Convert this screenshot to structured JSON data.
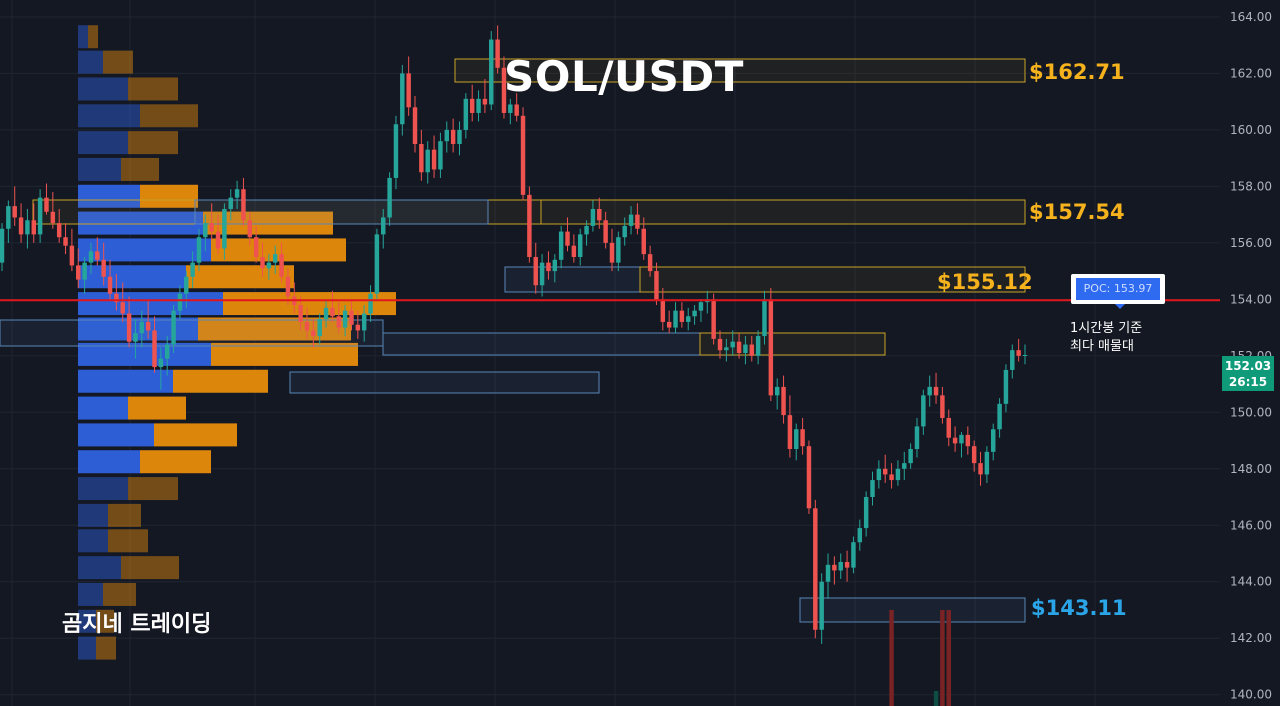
{
  "chart_data": {
    "type": "candlestick",
    "title": "SOL/USDT",
    "watermark": "곰지네 트레이딩",
    "ylim": [
      139.6,
      164.6
    ],
    "y_ticks": [
      "164.00",
      "162.00",
      "160.00",
      "158.00",
      "156.00",
      "154.00",
      "152.00",
      "150.00",
      "148.00",
      "146.00",
      "144.00",
      "142.00",
      "140.00"
    ],
    "last_price": {
      "value": "152.03",
      "countdown": "26:15"
    },
    "poc": {
      "label": "POC: 153.97",
      "value": 153.97,
      "note_line1": "1시간봉 기준",
      "note_line2": "최다 매물대"
    },
    "levels": [
      {
        "label": "$162.71",
        "value": 162.71,
        "color": "#f5b21c"
      },
      {
        "label": "$157.54",
        "value": 157.54,
        "color": "#f5b21c"
      },
      {
        "label": "$155.12",
        "value": 155.12,
        "color": "#f5b21c"
      },
      {
        "label": "$143.11",
        "value": 143.11,
        "color": "#2aa6e8"
      }
    ],
    "colors": {
      "up": "#26a69a",
      "down": "#ef5350",
      "poc_line": "#e0161c",
      "vp_up": "#2e62e0",
      "vp_down": "#e88c0c",
      "grid": "#1f2533",
      "background": "#141823"
    },
    "volume_profile": [
      {
        "price": 163.3,
        "up": 10,
        "down": 10
      },
      {
        "price": 162.4,
        "up": 25,
        "down": 30
      },
      {
        "price": 161.45,
        "up": 50,
        "down": 50
      },
      {
        "price": 160.5,
        "up": 62,
        "down": 58
      },
      {
        "price": 159.55,
        "up": 50,
        "down": 50
      },
      {
        "price": 158.6,
        "up": 43,
        "down": 38
      },
      {
        "price": 157.65,
        "up": 62,
        "down": 58
      },
      {
        "price": 156.7,
        "up": 125,
        "down": 130
      },
      {
        "price": 155.75,
        "up": 133,
        "down": 135
      },
      {
        "price": 154.8,
        "up": 108,
        "down": 108
      },
      {
        "price": 153.85,
        "up": 145,
        "down": 173
      },
      {
        "price": 152.95,
        "up": 120,
        "down": 153
      },
      {
        "price": 152.05,
        "up": 133,
        "down": 147
      },
      {
        "price": 151.1,
        "up": 95,
        "down": 95
      },
      {
        "price": 150.15,
        "up": 50,
        "down": 58
      },
      {
        "price": 149.2,
        "up": 76,
        "down": 83
      },
      {
        "price": 148.25,
        "up": 62,
        "down": 71
      },
      {
        "price": 147.3,
        "up": 50,
        "down": 50
      },
      {
        "price": 146.35,
        "up": 30,
        "down": 33
      },
      {
        "price": 145.45,
        "up": 30,
        "down": 40
      },
      {
        "price": 144.5,
        "up": 43,
        "down": 58
      },
      {
        "price": 143.55,
        "up": 25,
        "down": 33
      },
      {
        "price": 142.6,
        "up": 18,
        "down": 18
      },
      {
        "price": 141.65,
        "up": 18,
        "down": 20
      }
    ],
    "candles": [
      [
        155.3,
        156.7,
        155.0,
        156.5
      ],
      [
        156.5,
        157.5,
        156.0,
        157.3
      ],
      [
        157.3,
        158.0,
        156.6,
        156.9
      ],
      [
        156.9,
        157.4,
        156.0,
        156.3
      ],
      [
        156.3,
        157.2,
        155.8,
        156.8
      ],
      [
        156.8,
        157.4,
        156.0,
        156.3
      ],
      [
        156.3,
        157.9,
        156.0,
        157.6
      ],
      [
        157.6,
        158.1,
        157.0,
        157.1
      ],
      [
        157.1,
        157.8,
        156.5,
        156.7
      ],
      [
        156.7,
        157.2,
        156.0,
        156.2
      ],
      [
        156.2,
        156.7,
        155.6,
        155.9
      ],
      [
        155.9,
        156.5,
        155.0,
        155.2
      ],
      [
        155.2,
        155.8,
        154.4,
        154.7
      ],
      [
        154.7,
        155.5,
        154.2,
        155.3
      ],
      [
        155.3,
        156.0,
        154.9,
        155.7
      ],
      [
        155.7,
        156.2,
        155.2,
        155.4
      ],
      [
        155.4,
        156.0,
        154.5,
        154.8
      ],
      [
        154.8,
        155.4,
        154.0,
        154.2
      ],
      [
        154.2,
        154.9,
        153.6,
        153.9
      ],
      [
        153.9,
        154.6,
        153.2,
        153.5
      ],
      [
        153.5,
        154.1,
        152.3,
        152.5
      ],
      [
        152.5,
        153.3,
        151.9,
        152.8
      ],
      [
        152.8,
        153.6,
        152.3,
        153.2
      ],
      [
        153.2,
        154.0,
        152.6,
        152.9
      ],
      [
        152.9,
        153.4,
        151.4,
        151.6
      ],
      [
        151.6,
        152.3,
        150.8,
        151.9
      ],
      [
        151.9,
        152.7,
        151.3,
        152.4
      ],
      [
        152.4,
        153.8,
        152.1,
        153.6
      ],
      [
        153.6,
        154.5,
        153.3,
        154.2
      ],
      [
        154.2,
        155.0,
        153.7,
        154.8
      ],
      [
        154.8,
        155.7,
        154.4,
        155.3
      ],
      [
        155.3,
        156.5,
        155.0,
        156.2
      ],
      [
        156.2,
        157.0,
        155.7,
        156.7
      ],
      [
        156.7,
        157.4,
        156.1,
        156.4
      ],
      [
        156.4,
        157.0,
        155.6,
        155.8
      ],
      [
        155.8,
        157.4,
        155.4,
        157.2
      ],
      [
        157.2,
        157.9,
        156.8,
        157.6
      ],
      [
        157.6,
        158.2,
        157.2,
        157.9
      ],
      [
        157.9,
        158.3,
        156.6,
        156.8
      ],
      [
        156.8,
        157.1,
        155.9,
        156.2
      ],
      [
        156.2,
        156.6,
        155.3,
        155.5
      ],
      [
        155.5,
        156.0,
        154.8,
        155.1
      ],
      [
        155.1,
        155.6,
        154.7,
        155.3
      ],
      [
        155.3,
        155.9,
        154.9,
        155.6
      ],
      [
        155.6,
        156.0,
        154.6,
        154.8
      ],
      [
        154.8,
        155.1,
        153.8,
        154.1
      ],
      [
        154.1,
        154.6,
        153.5,
        153.8
      ],
      [
        153.8,
        154.1,
        152.9,
        153.2
      ],
      [
        153.2,
        153.7,
        152.6,
        152.9
      ],
      [
        152.9,
        153.3,
        152.3,
        152.7
      ],
      [
        152.7,
        153.5,
        152.4,
        153.3
      ],
      [
        153.3,
        154.0,
        153.0,
        153.7
      ],
      [
        153.7,
        154.3,
        153.2,
        153.4
      ],
      [
        153.4,
        153.9,
        152.8,
        153.0
      ],
      [
        153.0,
        153.8,
        152.7,
        153.6
      ],
      [
        153.6,
        154.0,
        152.9,
        153.1
      ],
      [
        153.1,
        153.6,
        152.6,
        152.9
      ],
      [
        152.9,
        153.8,
        152.5,
        153.5
      ],
      [
        153.5,
        154.5,
        153.2,
        154.2
      ],
      [
        154.2,
        156.5,
        154.0,
        156.3
      ],
      [
        156.3,
        157.2,
        155.8,
        156.9
      ],
      [
        156.9,
        158.5,
        156.6,
        158.3
      ],
      [
        158.3,
        160.5,
        157.9,
        160.2
      ],
      [
        160.2,
        162.3,
        159.8,
        162.0
      ],
      [
        162.0,
        162.6,
        160.5,
        160.8
      ],
      [
        160.8,
        161.2,
        159.2,
        159.5
      ],
      [
        159.5,
        160.0,
        158.2,
        158.5
      ],
      [
        158.5,
        159.6,
        158.1,
        159.3
      ],
      [
        159.3,
        159.8,
        158.3,
        158.6
      ],
      [
        158.6,
        159.9,
        158.3,
        159.6
      ],
      [
        159.6,
        160.3,
        159.2,
        160.0
      ],
      [
        160.0,
        160.4,
        159.2,
        159.5
      ],
      [
        159.5,
        160.3,
        159.1,
        160.0
      ],
      [
        160.0,
        161.3,
        159.7,
        161.1
      ],
      [
        161.1,
        161.6,
        160.3,
        160.6
      ],
      [
        160.6,
        161.4,
        160.3,
        161.1
      ],
      [
        161.1,
        161.8,
        160.6,
        160.9
      ],
      [
        160.9,
        163.5,
        160.7,
        163.2
      ],
      [
        163.2,
        163.7,
        162.0,
        162.2
      ],
      [
        162.2,
        162.6,
        160.4,
        160.6
      ],
      [
        160.6,
        161.1,
        160.2,
        160.9
      ],
      [
        160.9,
        161.3,
        160.3,
        160.5
      ],
      [
        160.5,
        160.8,
        157.5,
        157.7
      ],
      [
        157.7,
        158.0,
        155.3,
        155.5
      ],
      [
        155.5,
        156.0,
        154.2,
        154.5
      ],
      [
        154.5,
        155.6,
        154.1,
        155.3
      ],
      [
        155.3,
        155.7,
        154.7,
        155.0
      ],
      [
        155.0,
        155.6,
        154.6,
        155.4
      ],
      [
        155.4,
        156.6,
        155.1,
        156.4
      ],
      [
        156.4,
        156.9,
        155.7,
        155.9
      ],
      [
        155.9,
        156.3,
        155.3,
        155.5
      ],
      [
        155.5,
        156.5,
        155.2,
        156.3
      ],
      [
        156.3,
        156.8,
        155.9,
        156.6
      ],
      [
        156.6,
        157.5,
        156.4,
        157.2
      ],
      [
        157.2,
        157.6,
        156.5,
        156.8
      ],
      [
        156.8,
        157.1,
        155.8,
        156.0
      ],
      [
        156.0,
        156.5,
        155.0,
        155.3
      ],
      [
        155.3,
        156.4,
        155.0,
        156.2
      ],
      [
        156.2,
        156.9,
        155.9,
        156.6
      ],
      [
        156.6,
        157.3,
        156.3,
        157.0
      ],
      [
        157.0,
        157.4,
        156.3,
        156.5
      ],
      [
        156.5,
        156.9,
        155.4,
        155.6
      ],
      [
        155.6,
        155.9,
        154.8,
        155.0
      ],
      [
        155.0,
        155.3,
        153.8,
        154.0
      ],
      [
        154.0,
        154.4,
        152.9,
        153.2
      ],
      [
        153.2,
        153.6,
        152.8,
        153.0
      ],
      [
        153.0,
        153.9,
        152.8,
        153.6
      ],
      [
        153.6,
        153.9,
        153.0,
        153.2
      ],
      [
        153.2,
        153.7,
        152.9,
        153.4
      ],
      [
        153.4,
        153.8,
        153.1,
        153.6
      ],
      [
        153.6,
        154.0,
        153.2,
        153.9
      ],
      [
        153.9,
        154.3,
        153.5,
        154.0
      ],
      [
        154.0,
        154.2,
        152.4,
        152.6
      ],
      [
        152.6,
        152.9,
        151.9,
        152.2
      ],
      [
        152.2,
        152.6,
        151.8,
        152.3
      ],
      [
        152.3,
        152.9,
        152.0,
        152.5
      ],
      [
        152.5,
        152.8,
        151.9,
        152.1
      ],
      [
        152.1,
        152.7,
        151.7,
        152.4
      ],
      [
        152.4,
        152.7,
        151.8,
        152.0
      ],
      [
        152.0,
        152.9,
        151.7,
        152.7
      ],
      [
        152.7,
        154.3,
        152.4,
        154.0
      ],
      [
        154.0,
        154.4,
        150.4,
        150.6
      ],
      [
        150.6,
        151.2,
        150.1,
        150.9
      ],
      [
        150.9,
        151.3,
        149.6,
        149.9
      ],
      [
        149.9,
        150.6,
        148.4,
        148.7
      ],
      [
        148.7,
        149.6,
        148.3,
        149.4
      ],
      [
        149.4,
        149.8,
        148.5,
        148.8
      ],
      [
        148.8,
        149.0,
        146.4,
        146.6
      ],
      [
        146.6,
        146.9,
        142.0,
        142.3
      ],
      [
        142.3,
        144.3,
        141.8,
        144.0
      ],
      [
        144.0,
        145.0,
        143.4,
        144.6
      ],
      [
        144.6,
        144.9,
        143.9,
        144.4
      ],
      [
        144.4,
        145.0,
        144.1,
        144.7
      ],
      [
        144.7,
        145.1,
        144.0,
        144.5
      ],
      [
        144.5,
        145.6,
        144.3,
        145.4
      ],
      [
        145.4,
        146.2,
        145.1,
        145.9
      ],
      [
        145.9,
        147.2,
        145.6,
        147.0
      ],
      [
        147.0,
        147.9,
        146.7,
        147.6
      ],
      [
        147.6,
        148.3,
        147.3,
        148.0
      ],
      [
        148.0,
        148.5,
        147.5,
        147.8
      ],
      [
        147.8,
        148.2,
        147.3,
        147.6
      ],
      [
        147.6,
        148.3,
        147.4,
        148.0
      ],
      [
        148.0,
        148.6,
        147.6,
        148.2
      ],
      [
        148.2,
        148.9,
        148.0,
        148.7
      ],
      [
        148.7,
        149.8,
        148.4,
        149.5
      ],
      [
        149.5,
        150.8,
        149.2,
        150.6
      ],
      [
        150.6,
        151.3,
        150.2,
        150.9
      ],
      [
        150.9,
        151.4,
        150.3,
        150.6
      ],
      [
        150.6,
        150.9,
        149.6,
        149.8
      ],
      [
        149.8,
        150.1,
        148.8,
        149.1
      ],
      [
        149.1,
        149.5,
        148.6,
        148.9
      ],
      [
        148.9,
        149.3,
        148.4,
        149.2
      ],
      [
        149.2,
        149.5,
        148.5,
        148.8
      ],
      [
        148.8,
        149.0,
        147.9,
        148.2
      ],
      [
        148.2,
        148.6,
        147.4,
        147.8
      ],
      [
        147.8,
        148.8,
        147.5,
        148.6
      ],
      [
        148.6,
        149.6,
        148.3,
        149.4
      ],
      [
        149.4,
        150.5,
        149.1,
        150.3
      ],
      [
        150.3,
        151.7,
        150.0,
        151.5
      ],
      [
        151.5,
        152.4,
        151.2,
        152.2
      ],
      [
        152.2,
        152.6,
        151.8,
        152.0
      ],
      [
        152.0,
        152.4,
        151.7,
        152.03
      ]
    ],
    "volume": [
      {
        "candle": 140,
        "height": 0.32,
        "color": "#7a2324"
      },
      {
        "candle": 148,
        "height": 0.32,
        "color": "#7a2324"
      },
      {
        "candle": 149,
        "height": 0.32,
        "color": "#7a2324"
      },
      {
        "candle": 147,
        "height": 0.05,
        "color": "#0e4d44"
      }
    ]
  }
}
